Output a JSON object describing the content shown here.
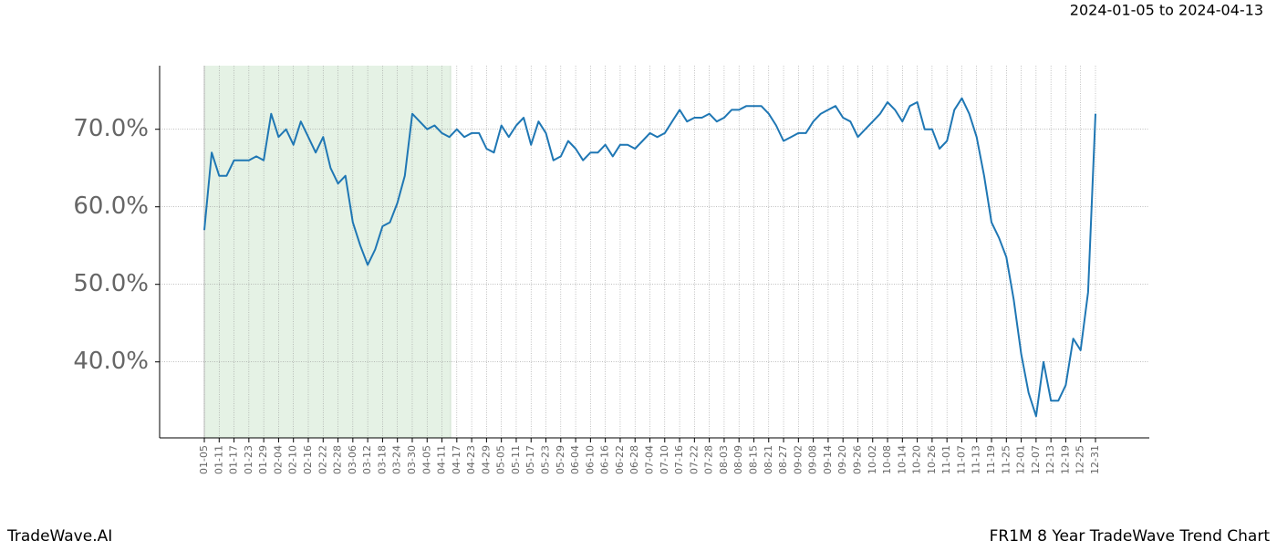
{
  "header": {
    "date_range": "2024-01-05 to 2024-04-13"
  },
  "footer": {
    "brand": "TradeWave.AI",
    "title": "FR1M 8 Year TradeWave Trend Chart"
  },
  "chart_data": {
    "type": "line",
    "color": "#1f77b4",
    "grid": true,
    "categories": [
      "01-05",
      null,
      "01-11",
      null,
      "01-17",
      null,
      "01-23",
      null,
      "01-29",
      null,
      "02-04",
      null,
      "02-10",
      null,
      "02-16",
      null,
      "02-22",
      null,
      "02-28",
      null,
      "03-06",
      null,
      "03-12",
      null,
      "03-18",
      null,
      "03-24",
      null,
      "03-30",
      null,
      "04-05",
      null,
      "04-11",
      null,
      "04-17",
      null,
      "04-23",
      null,
      "04-29",
      null,
      "05-05",
      null,
      "05-11",
      null,
      "05-17",
      null,
      "05-23",
      null,
      "05-29",
      null,
      "06-04",
      null,
      "06-10",
      null,
      "06-16",
      null,
      "06-22",
      null,
      "06-28",
      null,
      "07-04",
      null,
      "07-10",
      null,
      "07-16",
      null,
      "07-22",
      null,
      "07-28",
      null,
      "08-03",
      null,
      "08-09",
      null,
      "08-15",
      null,
      "08-21",
      null,
      "08-27",
      null,
      "09-02",
      null,
      "09-08",
      null,
      "09-14",
      null,
      "09-20",
      null,
      "09-26",
      null,
      "10-02",
      null,
      "10-08",
      null,
      "10-14",
      null,
      "10-20",
      null,
      "10-26",
      null,
      "11-01",
      null,
      "11-07",
      null,
      "11-13",
      null,
      "11-19",
      null,
      "11-25",
      null,
      "12-01",
      null,
      "12-07",
      null,
      "12-13",
      null,
      "12-19",
      null,
      "12-25",
      null,
      "12-31"
    ],
    "values": [
      57,
      67,
      64,
      64,
      66,
      66,
      66,
      66.5,
      66,
      72,
      69,
      70,
      68,
      71,
      69,
      67,
      69,
      65,
      63,
      64,
      58,
      55,
      52.5,
      54.5,
      57.5,
      58,
      60.5,
      64,
      72,
      71,
      70,
      70.5,
      69.5,
      69,
      70,
      69,
      69.5,
      69.5,
      67.5,
      67,
      70.5,
      69,
      70.5,
      71.5,
      68,
      71,
      69.5,
      66,
      66.5,
      68.5,
      67.5,
      66,
      67,
      67,
      68,
      66.5,
      68,
      68,
      67.5,
      68.5,
      69.5,
      69,
      69.5,
      71,
      72.5,
      71,
      71.5,
      71.5,
      72,
      71,
      71.5,
      72.5,
      72.5,
      73,
      73,
      73,
      72,
      70.5,
      68.5,
      69,
      69.5,
      69.5,
      71,
      72,
      72.5,
      73,
      71.5,
      71,
      69,
      70,
      71,
      72,
      73.5,
      72.5,
      71,
      73,
      73.5,
      70,
      70,
      67.5,
      68.5,
      72.5,
      74,
      72,
      69,
      64,
      58,
      56,
      53.5,
      48,
      41,
      36,
      33,
      40,
      35,
      35,
      37,
      43,
      41.5,
      49,
      72
    ],
    "ylim": [
      30.2,
      78.2
    ],
    "yticks": [
      {
        "value": 40,
        "label": "40.0%"
      },
      {
        "value": 50,
        "label": "50.0%"
      },
      {
        "value": 60,
        "label": "60.0%"
      },
      {
        "value": 70,
        "label": "70.0%"
      }
    ]
  }
}
